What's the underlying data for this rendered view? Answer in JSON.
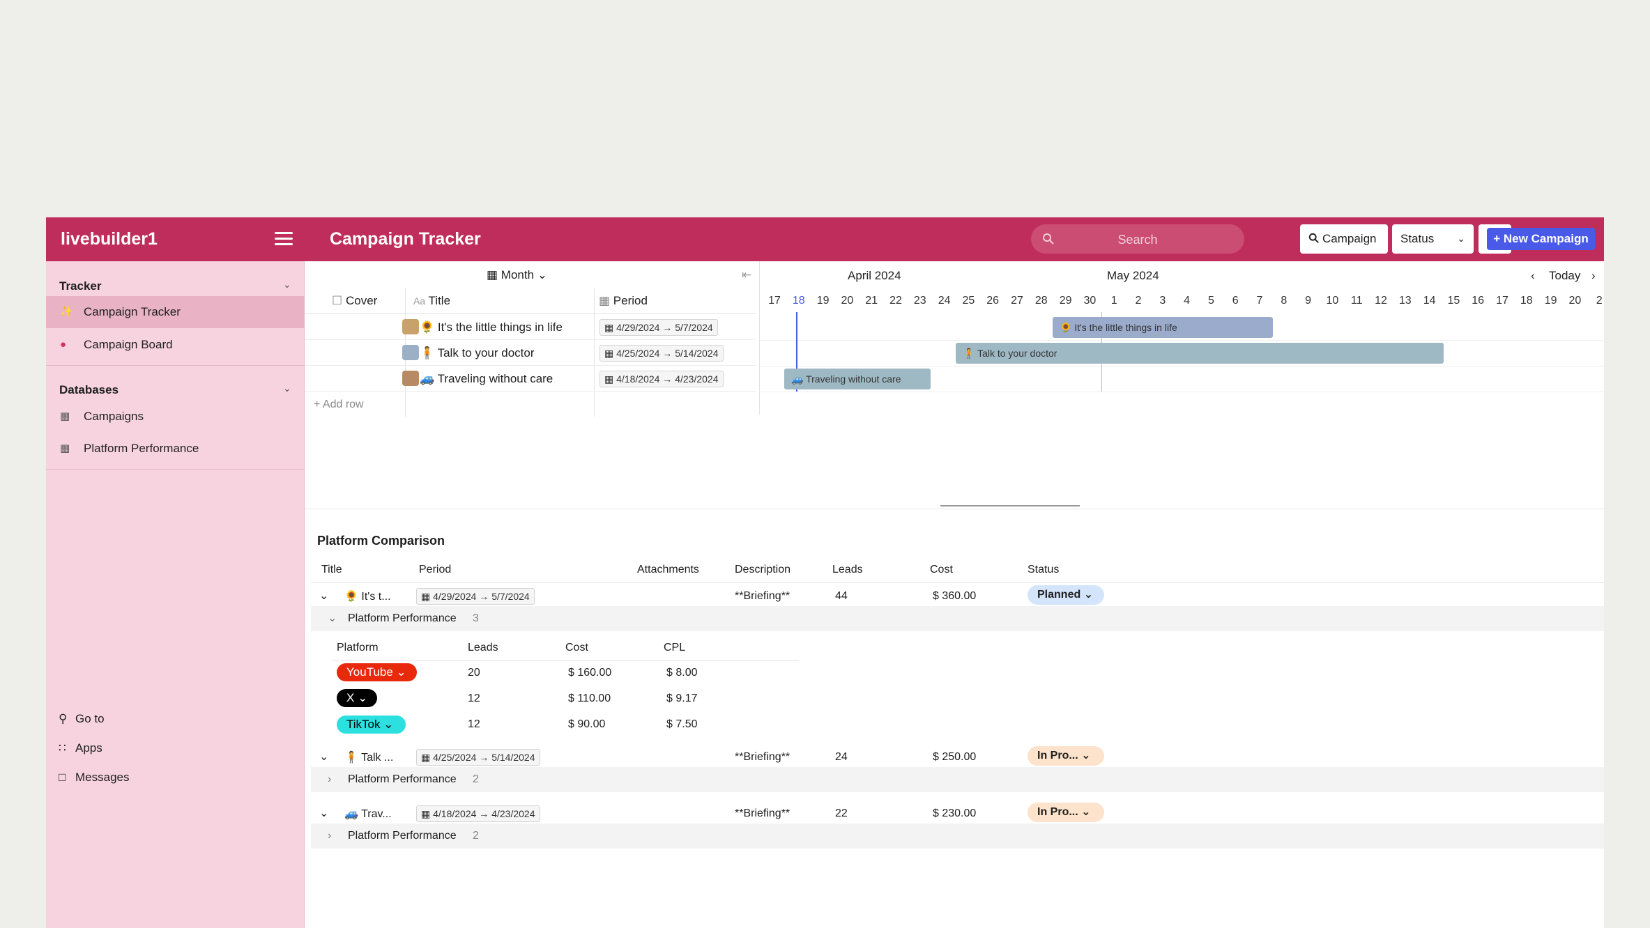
{
  "app": {
    "brand": "livebuilder1",
    "page_title": "Campaign Tracker"
  },
  "header": {
    "search_placeholder": "Search",
    "campaign_label": "Campaign",
    "status_label": "Status",
    "new_button": "+ New Campaign"
  },
  "sidebar": {
    "tracker_label": "Tracker",
    "tracker_items": [
      "Campaign Tracker",
      "Campaign Board"
    ],
    "databases_label": "Databases",
    "database_items": [
      "Campaigns",
      "Platform Performance"
    ],
    "bottom": [
      "Go to",
      "Apps",
      "Messages"
    ]
  },
  "timeline": {
    "view": "Month",
    "month1": "April 2024",
    "month2": "May 2024",
    "today": "Today",
    "columns": {
      "cover": "Cover",
      "title": "Title",
      "period": "Period"
    },
    "days": [
      "17",
      "18",
      "19",
      "20",
      "21",
      "22",
      "23",
      "24",
      "25",
      "26",
      "27",
      "28",
      "29",
      "30",
      "1",
      "2",
      "3",
      "4",
      "5",
      "6",
      "7",
      "8",
      "9",
      "10",
      "11",
      "12",
      "13",
      "14",
      "15",
      "16",
      "17",
      "18",
      "19",
      "20",
      "2"
    ],
    "rows": [
      {
        "emoji": "🌻",
        "title": "It's the little things in life",
        "start": "4/29/2024",
        "end": "5/7/2024"
      },
      {
        "emoji": "🧍",
        "title": "Talk to your doctor",
        "start": "4/25/2024",
        "end": "5/14/2024"
      },
      {
        "emoji": "🚙",
        "title": "Traveling without care",
        "start": "4/18/2024",
        "end": "4/23/2024"
      }
    ],
    "add_row": "Add row"
  },
  "comparison": {
    "title": "Platform Comparison",
    "headers": [
      "Title",
      "Period",
      "Attachments",
      "Description",
      "Leads",
      "Cost",
      "Status"
    ],
    "sub_headers": [
      "Platform",
      "Leads",
      "Cost",
      "CPL"
    ],
    "campaigns": [
      {
        "emoji": "🌻",
        "title": "It's t...",
        "start": "4/29/2024",
        "end": "5/7/2024",
        "description": "**Briefing**",
        "leads": "44",
        "cost": "$ 360.00",
        "status": "Planned",
        "group": "Platform Performance",
        "group_count": "3"
      },
      {
        "emoji": "🧍",
        "title": "Talk ...",
        "start": "4/25/2024",
        "end": "5/14/2024",
        "description": "**Briefing**",
        "leads": "24",
        "cost": "$ 250.00",
        "status": "In Pro...",
        "group": "Platform Performance",
        "group_count": "2"
      },
      {
        "emoji": "🚙",
        "title": "Trav...",
        "start": "4/18/2024",
        "end": "4/23/2024",
        "description": "**Briefing**",
        "leads": "22",
        "cost": "$ 230.00",
        "status": "In Pro...",
        "group": "Platform Performance",
        "group_count": "2"
      }
    ],
    "platforms": [
      {
        "name": "YouTube",
        "leads": "20",
        "cost": "$ 160.00",
        "cpl": "$ 8.00",
        "color": "#e8290b"
      },
      {
        "name": "X",
        "leads": "12",
        "cost": "$ 110.00",
        "cpl": "$ 9.17",
        "color": "#000000"
      },
      {
        "name": "TikTok",
        "leads": "12",
        "cost": "$ 90.00",
        "cpl": "$ 7.50",
        "color": "#2de0e0"
      }
    ]
  },
  "colors": {
    "header": "#bf2d5d",
    "sidebar": "#f7d3e0",
    "accent": "#4a5ae8",
    "planned": "#d4e4fb",
    "in_progress": "#fde3cb",
    "bar_blue": "#9aabcc",
    "bar_teal": "#9fb9c4"
  }
}
